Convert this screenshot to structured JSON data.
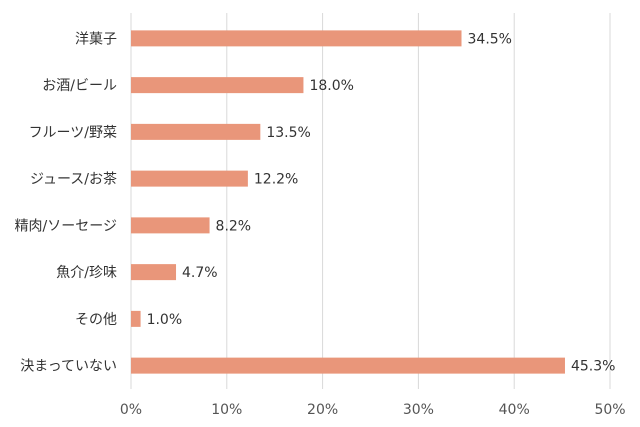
{
  "chart_data": {
    "type": "bar",
    "orientation": "horizontal",
    "categories": [
      "洋菓子",
      "お酒/ビール",
      "フルーツ/野菜",
      "ジュース/お茶",
      "精肉/ソーセージ",
      "魚介/珍味",
      "その他",
      "決まっていない"
    ],
    "values": [
      34.5,
      18.0,
      13.5,
      12.2,
      8.2,
      4.7,
      1.0,
      45.3
    ],
    "value_labels": [
      "34.5%",
      "18.0%",
      "13.5%",
      "12.2%",
      "8.2%",
      "4.7%",
      "1.0%",
      "45.3%"
    ],
    "xlim": [
      0,
      50
    ],
    "x_ticks": [
      0,
      10,
      20,
      30,
      40,
      50
    ],
    "x_tick_labels": [
      "0%",
      "10%",
      "20%",
      "30%",
      "40%",
      "50%"
    ],
    "grid": true,
    "legend": "none",
    "colors": {
      "bar": "#e9967a",
      "grid": "#d9d9d9",
      "text": "#333333"
    }
  }
}
